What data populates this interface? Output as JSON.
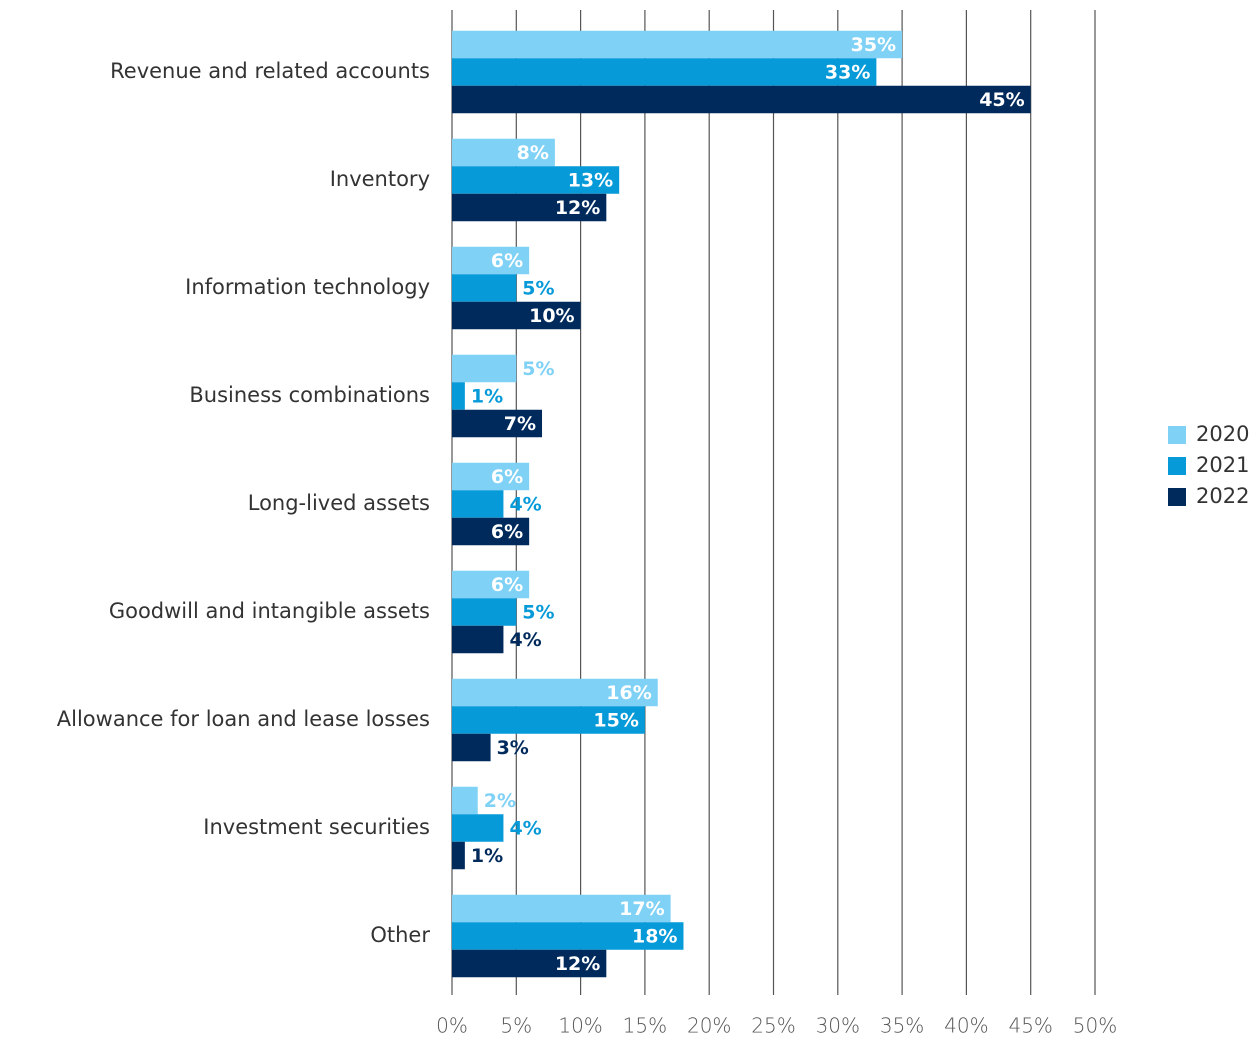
{
  "chart_data": {
    "type": "hbar",
    "categories": [
      "Revenue and related accounts",
      "Inventory",
      "Information technology",
      "Business combinations",
      "Long-lived assets",
      "Goodwill and intangible assets",
      "Allowance for loan and lease losses",
      "Investment securities",
      "Other"
    ],
    "series": [
      {
        "name": "2020",
        "color": "#7fd1f5",
        "values": [
          35,
          8,
          6,
          5,
          6,
          6,
          16,
          2,
          17
        ],
        "value_labels": [
          "35%",
          "8%",
          "6%",
          "5%",
          "6%",
          "6%",
          "16%",
          "2%",
          "17%"
        ]
      },
      {
        "name": "2021",
        "color": "#069ad9",
        "values": [
          33,
          13,
          5,
          1,
          4,
          5,
          15,
          4,
          18
        ],
        "value_labels": [
          "33%",
          "13%",
          "5%",
          "1%",
          "4%",
          "5%",
          "15%",
          "4%",
          "18%"
        ]
      },
      {
        "name": "2022",
        "color": "#002a5c",
        "values": [
          45,
          12,
          10,
          7,
          6,
          4,
          3,
          1,
          12
        ],
        "value_labels": [
          "45%",
          "12%",
          "10%",
          "7%",
          "6%",
          "4%",
          "3%",
          "1%",
          "12%"
        ]
      }
    ],
    "xlim": [
      0,
      50
    ],
    "xticks": [
      {
        "value": 0,
        "label": "0%"
      },
      {
        "value": 5,
        "label": "5%"
      },
      {
        "value": 10,
        "label": "10%"
      },
      {
        "value": 15,
        "label": "15%"
      },
      {
        "value": 20,
        "label": "20%"
      },
      {
        "value": 25,
        "label": "25%"
      },
      {
        "value": 30,
        "label": "30%"
      },
      {
        "value": 35,
        "label": "35%"
      },
      {
        "value": 40,
        "label": "40%"
      },
      {
        "value": 45,
        "label": "45%"
      },
      {
        "value": 50,
        "label": "50%"
      }
    ],
    "grid": true,
    "legend": "right"
  }
}
